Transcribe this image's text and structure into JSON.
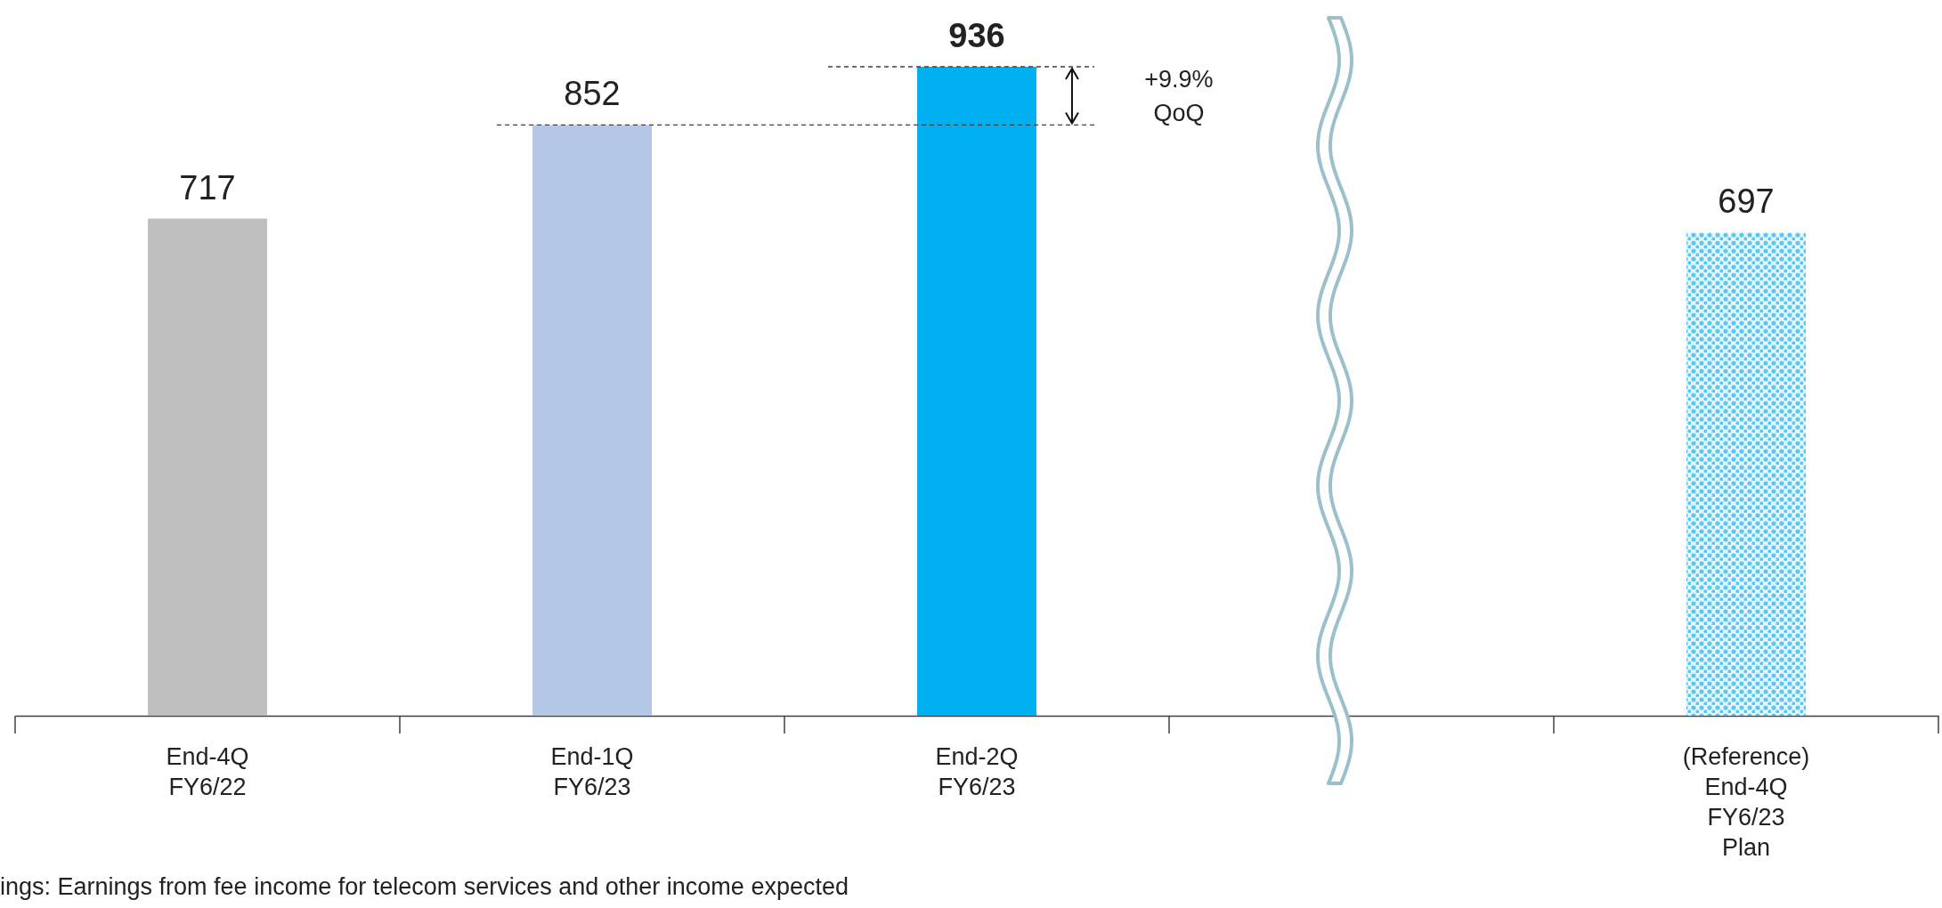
{
  "chart_data": {
    "type": "bar",
    "categories": [
      "End-4Q\nFY6/22",
      "End-1Q\nFY6/23",
      "End-2Q\nFY6/23",
      null,
      "(Reference)\nEnd-4Q\nFY6/23\nPlan"
    ],
    "values": [
      717,
      852,
      936,
      null,
      697
    ],
    "colors": [
      "#bfbfbf",
      "#b4c7e7",
      "#00b0f0",
      null,
      "#5cc8f2"
    ],
    "data_labels": true,
    "ref_lines": [
      {
        "axis": "y",
        "value": 852,
        "line_style": "dashed",
        "color": "#404040"
      },
      {
        "axis": "y",
        "value": 936,
        "line_style": "dashed",
        "color": "#404040"
      }
    ],
    "annotations": [
      "+9.9%\nQoQ",
      "ings: Earnings from fee income for telecom services and other income expected"
    ]
  }
}
